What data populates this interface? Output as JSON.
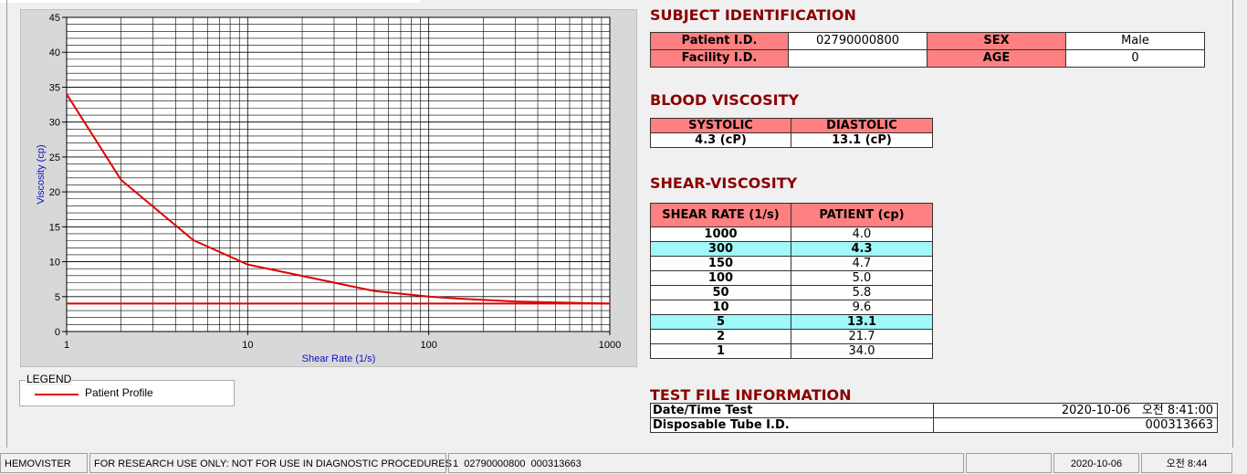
{
  "chart_data": {
    "type": "line",
    "x_label": "Shear Rate (1/s)",
    "y_label": "Viscosity (cp)",
    "xscale": "log",
    "xlim": [
      1,
      1000
    ],
    "xticks": [
      1,
      10,
      100,
      1000
    ],
    "ylim": [
      0,
      45
    ],
    "yticks": [
      0,
      5,
      10,
      15,
      20,
      25,
      30,
      35,
      40,
      45
    ],
    "grid": true,
    "legend_title": "LEGEND",
    "series": [
      {
        "name": "Patient Profile",
        "color": "#e00000",
        "x": [
          1,
          2,
          5,
          10,
          50,
          100,
          150,
          300,
          1000
        ],
        "values": [
          34.0,
          21.7,
          13.1,
          9.6,
          5.8,
          5.0,
          4.7,
          4.3,
          4.0
        ]
      },
      {
        "color": "#e00000",
        "x": [
          1,
          1000
        ],
        "values": [
          4,
          4
        ]
      }
    ]
  },
  "subject_identification": {
    "title": "SUBJECT IDENTIFICATION",
    "patient_id": {
      "label": "Patient I.D.",
      "value": "02790000800"
    },
    "facility_id": {
      "label": "Facility I.D."
    },
    "sex": {
      "label": "SEX",
      "value": "Male"
    },
    "age": {
      "label": "AGE",
      "value": 0
    }
  },
  "blood_viscosity": {
    "title": "BLOOD VISCOSITY",
    "headers": [
      "SYSTOLIC",
      "DIASTOLIC"
    ],
    "values": [
      "4.3 (cP)",
      "13.1 (cP)"
    ]
  },
  "shear_viscosity": {
    "title": "SHEAR-VISCOSITY",
    "headers": [
      "SHEAR RATE (1/s)",
      "PATIENT (cp)"
    ],
    "rows": [
      [
        1000,
        "4.0"
      ],
      [
        300,
        "4.3"
      ],
      [
        150,
        "4.7"
      ],
      [
        100,
        "5.0"
      ],
      [
        50,
        "5.8"
      ],
      [
        10,
        "9.6"
      ],
      [
        5,
        "13.1"
      ],
      [
        2,
        "21.7"
      ],
      [
        1,
        "34.0"
      ]
    ],
    "highlight_rows": [
      1,
      6
    ]
  },
  "test_file": {
    "title": "TEST FILE INFORMATION",
    "rows": [
      [
        "Date/Time Test",
        "2020-10-06   오전 8:41:00"
      ],
      [
        "Disposable Tube I.D.",
        "000313663"
      ]
    ]
  },
  "status_bar": [
    "HEMOVISTER",
    "FOR RESEARCH USE ONLY: NOT FOR USE IN DIAGNOSTIC PROCEDURES",
    "1  02790000800  000313663",
    "2020-10-06",
    "오전 8:44"
  ]
}
